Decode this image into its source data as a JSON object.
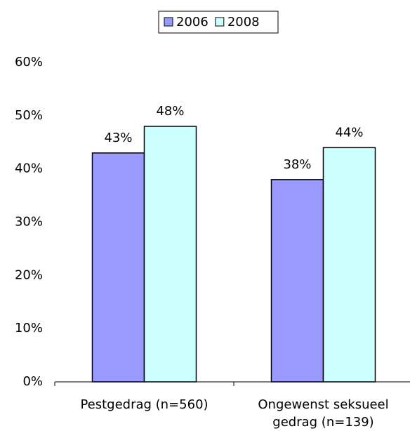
{
  "chart_data": {
    "type": "bar",
    "categories": [
      "Pestgedrag (n=560)",
      "Ongewenst seksueel gedrag (n=139)"
    ],
    "series": [
      {
        "name": "2006",
        "color": "#9999ff",
        "values": [
          43,
          38
        ],
        "value_labels": [
          "43%",
          "38%"
        ]
      },
      {
        "name": "2008",
        "color": "#ccffff",
        "values": [
          48,
          44
        ],
        "value_labels": [
          "48%",
          "44%"
        ]
      }
    ],
    "ylim": [
      0,
      60
    ],
    "yticks": [
      {
        "value": 0,
        "label": "0%"
      },
      {
        "value": 10,
        "label": "10%"
      },
      {
        "value": 20,
        "label": "20%"
      },
      {
        "value": 30,
        "label": "30%"
      },
      {
        "value": 40,
        "label": "40%"
      },
      {
        "value": 50,
        "label": "50%"
      },
      {
        "value": 60,
        "label": "60%"
      }
    ],
    "grid": false,
    "legend": "top"
  }
}
